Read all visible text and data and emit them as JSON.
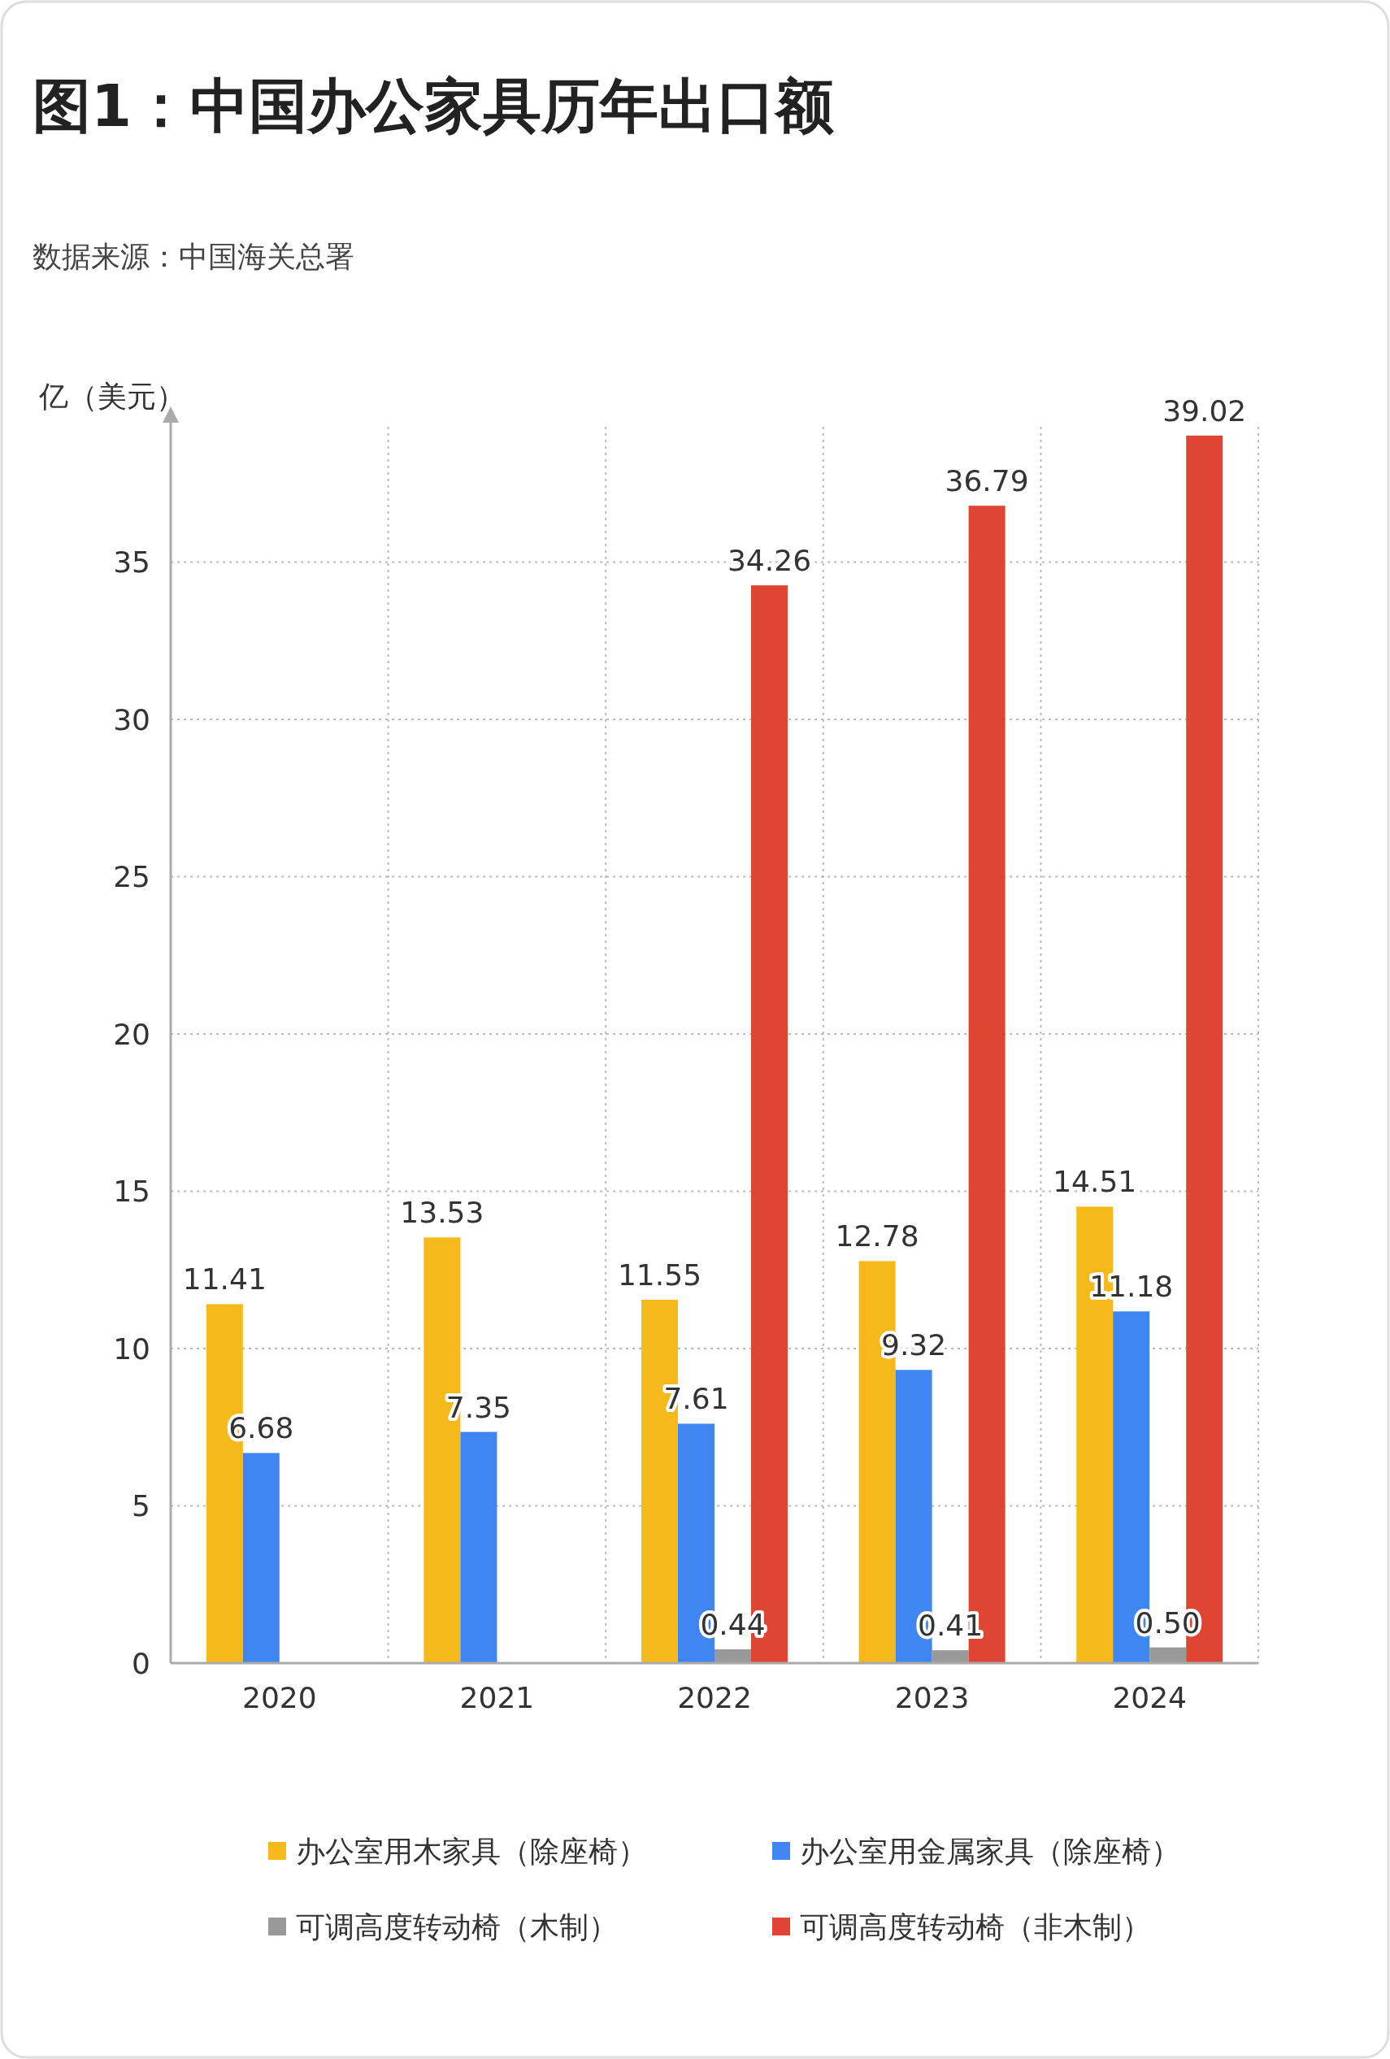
{
  "chart_data": {
    "type": "bar",
    "title": "图1：中国办公家具历年出口额",
    "ylabel": "亿（美元）",
    "annotations": [
      "数据来源：中国海关总署"
    ],
    "categories": [
      "2020",
      "2021",
      "2022",
      "2023",
      "2024"
    ],
    "series": [
      {
        "name": "办公室用木家具（除座椅）",
        "color": "#f5b91c",
        "values": [
          11.41,
          13.53,
          11.55,
          12.78,
          14.51
        ],
        "value_labels": [
          "11.41",
          "13.53",
          "11.55",
          "12.78",
          "14.51"
        ]
      },
      {
        "name": "办公室用金属家具（除座椅）",
        "color": "#3f86f2",
        "values": [
          6.68,
          7.35,
          7.61,
          9.32,
          11.18
        ],
        "value_labels": [
          "6.68",
          "7.35",
          "7.61",
          "9.32",
          "11.18"
        ]
      },
      {
        "name": "可调高度转动椅（木制）",
        "color": "#999999",
        "values": [
          null,
          null,
          0.44,
          0.41,
          0.5
        ],
        "value_labels": [
          null,
          null,
          "0.44",
          "0.41",
          "0.50"
        ]
      },
      {
        "name": "可调高度转动椅（非木制）",
        "color": "#e04433",
        "values": [
          null,
          null,
          34.26,
          36.79,
          39.02
        ],
        "value_labels": [
          null,
          null,
          "34.26",
          "36.79",
          "39.02"
        ]
      }
    ],
    "ylim": [
      0,
      39.3
    ],
    "yticks": [
      0,
      5,
      10,
      15,
      20,
      25,
      30,
      35
    ],
    "grid": true,
    "legend": "bottom"
  }
}
